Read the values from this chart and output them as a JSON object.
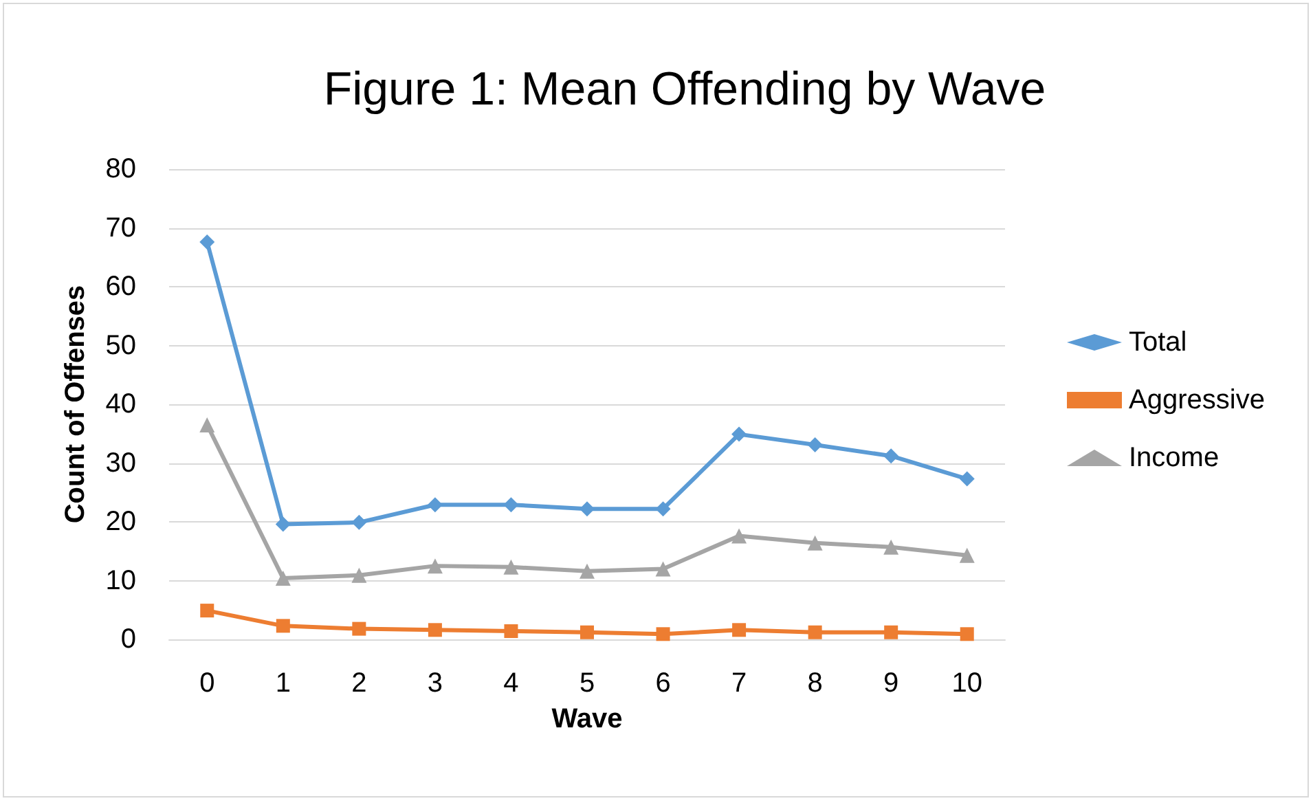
{
  "chart_data": {
    "type": "line",
    "title": "Figure 1: Mean Offending by Wave",
    "xlabel": "Wave",
    "ylabel": "Count of Offenses",
    "categories": [
      "0",
      "1",
      "2",
      "3",
      "4",
      "5",
      "6",
      "7",
      "8",
      "9",
      "10"
    ],
    "series": [
      {
        "name": "Total",
        "color": "#5b9bd5",
        "marker": "diamond",
        "values": [
          67.6,
          19.6,
          19.9,
          22.9,
          22.9,
          22.2,
          22.2,
          34.9,
          33.1,
          31.2,
          27.3
        ]
      },
      {
        "name": "Aggressive",
        "color": "#ed7d31",
        "marker": "square",
        "values": [
          4.9,
          2.3,
          1.8,
          1.6,
          1.4,
          1.2,
          0.9,
          1.6,
          1.2,
          1.2,
          0.9
        ]
      },
      {
        "name": "Income",
        "color": "#a5a5a5",
        "marker": "triangle",
        "values": [
          36.5,
          10.4,
          10.9,
          12.5,
          12.3,
          11.6,
          12.0,
          17.6,
          16.4,
          15.7,
          14.3
        ]
      }
    ],
    "ylim": [
      0,
      80
    ],
    "yticks": [
      0,
      10,
      20,
      30,
      40,
      50,
      60,
      70,
      80
    ],
    "grid": "y",
    "legend": "right"
  }
}
